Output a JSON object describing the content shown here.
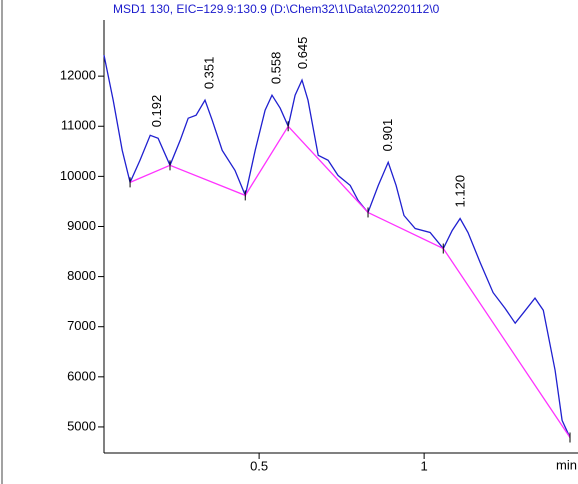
{
  "chart_data": {
    "type": "line",
    "title": "MSD1 130, EIC=129.9:130.9 (D:\\Chem32\\1\\Data\\20220112\\0",
    "x_label": "min",
    "xlim": [
      0.03,
      1.442
    ],
    "xticks": [
      0.5,
      1
    ],
    "ylim": [
      4480,
      13220
    ],
    "yticks": [
      5000,
      6000,
      7000,
      8000,
      9000,
      10000,
      11000,
      12000
    ],
    "series": [
      {
        "color": "#2020d0",
        "x": [
          0.03,
          0.058,
          0.085,
          0.109,
          0.139,
          0.17,
          0.194,
          0.23,
          0.261,
          0.285,
          0.309,
          0.336,
          0.358,
          0.388,
          0.427,
          0.458,
          0.488,
          0.518,
          0.539,
          0.564,
          0.588,
          0.609,
          0.63,
          0.648,
          0.679,
          0.709,
          0.739,
          0.776,
          0.8,
          0.83,
          0.861,
          0.891,
          0.915,
          0.939,
          0.973,
          1.018,
          1.058,
          1.085,
          1.109,
          1.133,
          1.17,
          1.209,
          1.245,
          1.276,
          1.306,
          1.336,
          1.361,
          1.397,
          1.418,
          1.442
        ],
        "values": [
          12420,
          11520,
          10520,
          9880,
          10320,
          10820,
          10760,
          10220,
          10720,
          11160,
          11220,
          11520,
          11120,
          10520,
          10120,
          9620,
          10520,
          11320,
          11620,
          11360,
          11000,
          11620,
          11920,
          11520,
          10420,
          10320,
          10020,
          9820,
          9520,
          9280,
          9820,
          10280,
          9820,
          9220,
          8960,
          8880,
          8560,
          8920,
          9160,
          8880,
          8280,
          7680,
          7370,
          7070,
          7320,
          7570,
          7330,
          6130,
          5130,
          4790
        ]
      },
      {
        "color": "#ff33ff",
        "x": [
          0.109,
          0.23,
          0.458,
          0.588,
          0.83,
          1.058,
          1.442
        ],
        "values": [
          9880,
          10220,
          9620,
          11000,
          9280,
          8560,
          4790
        ]
      }
    ],
    "annotations": [
      {
        "text": "0.192",
        "x": 0.192,
        "y": 10860
      },
      {
        "text": "0.351",
        "x": 0.351,
        "y": 11620
      },
      {
        "text": "0.558",
        "x": 0.555,
        "y": 11720
      },
      {
        "text": "0.645",
        "x": 0.634,
        "y": 12020
      },
      {
        "text": "0.901",
        "x": 0.893,
        "y": 10380
      },
      {
        "text": "1.120",
        "x": 1.112,
        "y": 9260
      }
    ]
  }
}
